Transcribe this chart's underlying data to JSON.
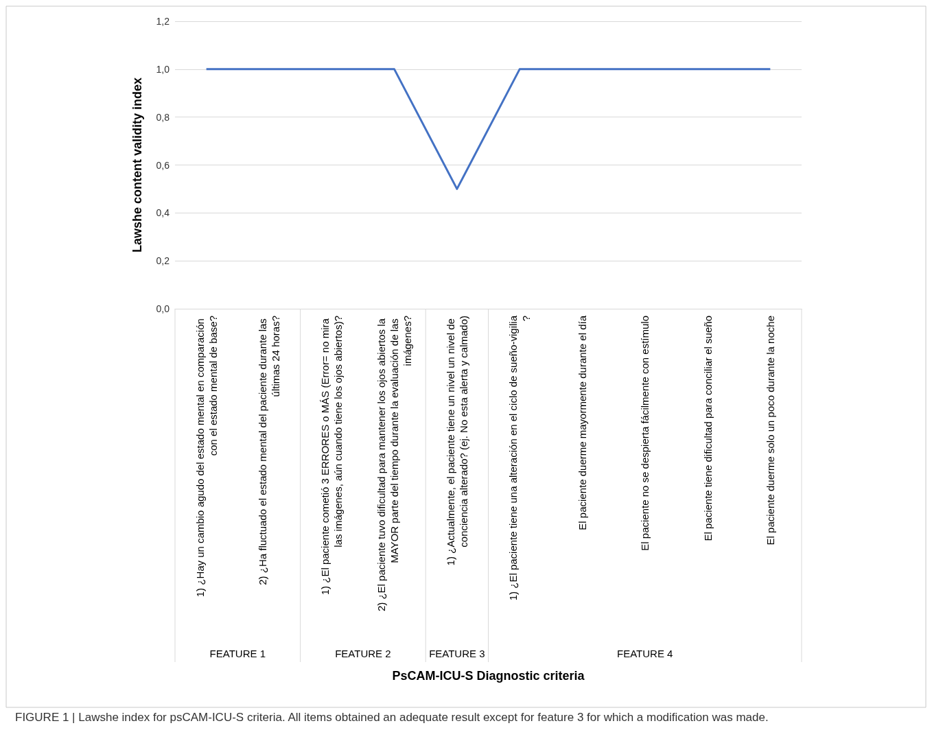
{
  "chart_data": {
    "type": "line",
    "ylabel": "Lawshe content validity index",
    "categories": [
      "1) ¿Hay un cambio agudo del estado mental en comparación con el estado mental de base?",
      "2) ¿Ha fluctuado el estado mental del paciente durante las últimas 24 horas?",
      "1) ¿El paciente cometió 3 ERRORES o MÁS (Error= no mira las imágenes, aún cuando tiene los ojos abiertos)?",
      "2) ¿El paciente tuvo dificultad para mantener los ojos abiertos la MAYOR parte del tiempo durante la evaluación de las imágenes?",
      "1) ¿Actualmente, el paciente tiene un nivel un nivel de conciencia alterado? (ej. No esta alerta y calmado)",
      "1) ¿El paciente tiene una alteración en el ciclo de sueño-vigilia?",
      "El paciente duerme mayormente durante el día",
      "El paciente no se despierta fácilmente con estímulo",
      "El paciente tiene dificultad para conciliar el sueño",
      "El paciente duerme solo un poco durante la noche"
    ],
    "series": [
      {
        "color": "#4472c4",
        "values": [
          1,
          1,
          1,
          1,
          0.5,
          1,
          1,
          1,
          1,
          1
        ]
      }
    ],
    "ylim": [
      0,
      1.2
    ],
    "yticks": [
      {
        "value": 0,
        "label": "0,0"
      },
      {
        "value": 0.2,
        "label": "0,2"
      },
      {
        "value": 0.4,
        "label": "0,4"
      },
      {
        "value": 0.6,
        "label": "0,6"
      },
      {
        "value": 0.8,
        "label": "0,8"
      },
      {
        "value": 1,
        "label": "1,0"
      },
      {
        "value": 1.2,
        "label": "1,2"
      }
    ],
    "grid": "y",
    "marker": "none",
    "line_style": "solid",
    "annotations": [
      "FEATURE 1",
      "FEATURE 2",
      "FEATURE 3",
      "FEATURE 4",
      "PsCAM-ICU-S Diagnostic criteria",
      "FIGURE 1 | Lawshe index for psCAM-ICU-S criteria. All items obtained an adequate result except for feature 3 for which a modification was made."
    ]
  }
}
